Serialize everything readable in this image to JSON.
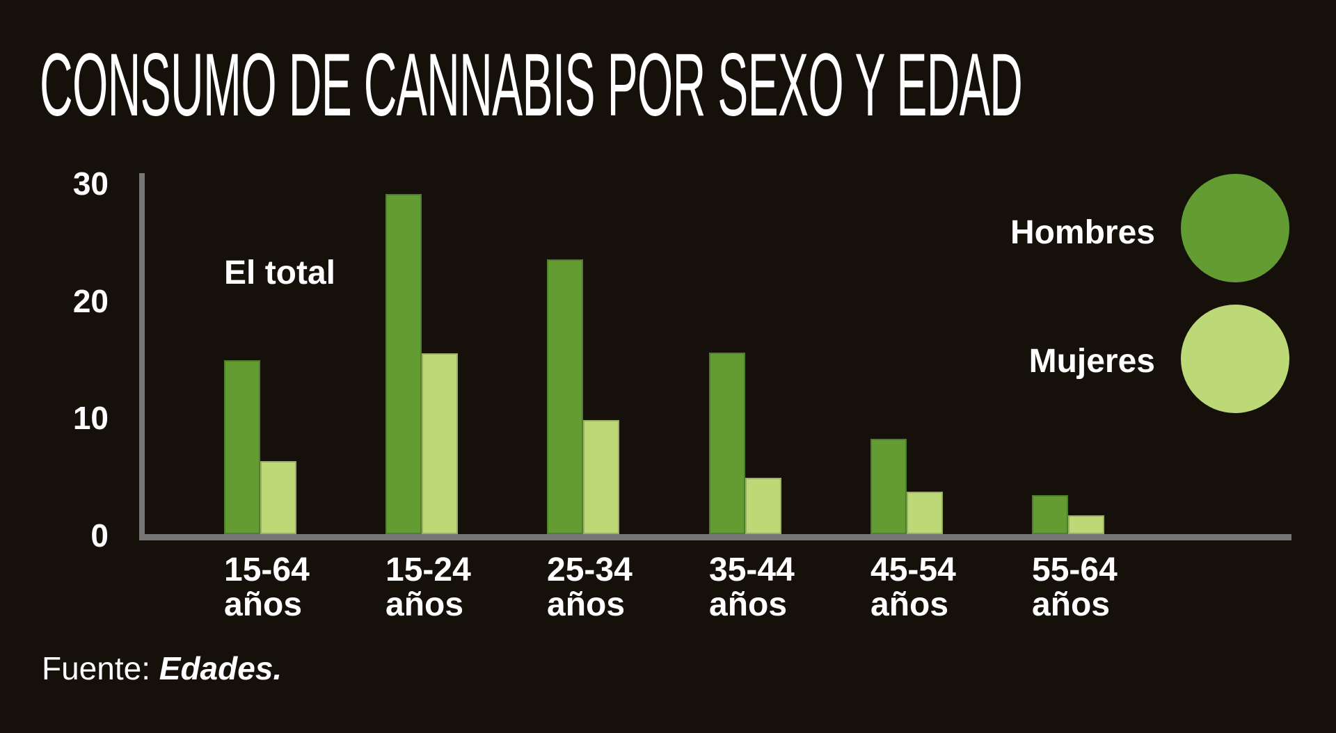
{
  "title": "CONSUMO DE CANNABIS POR SEXO Y EDAD",
  "annotation": "El total",
  "legend": {
    "items": [
      {
        "label": "Hombres",
        "color": "#649c34"
      },
      {
        "label": "Mujeres",
        "color": "#bdd877"
      }
    ]
  },
  "source": {
    "prefix": "Fuente: ",
    "name": "Edades."
  },
  "colors": {
    "background": "#15100a",
    "axis": "#777777",
    "text": "#ffffff",
    "hombres": "#649c34",
    "mujeres": "#bdd877"
  },
  "chart_data": {
    "type": "bar",
    "title": "CONSUMO DE CANNABIS POR SEXO Y EDAD",
    "categories": [
      "15-64 años",
      "15-24 años",
      "25-34 años",
      "35-44 años",
      "45-54 años",
      "55-64 años"
    ],
    "series": [
      {
        "name": "Hombres",
        "color": "#649c34",
        "values": [
          14.8,
          29.0,
          23.4,
          15.5,
          8.1,
          3.3
        ]
      },
      {
        "name": "Mujeres",
        "color": "#bdd877",
        "values": [
          6.2,
          15.4,
          9.7,
          4.8,
          3.6,
          1.6
        ]
      }
    ],
    "xlabel": "",
    "ylabel": "",
    "ylim": [
      0,
      30
    ],
    "yticks": [
      0,
      10,
      20,
      30
    ],
    "grid": false,
    "legend_position": "right",
    "annotations": [
      "El total"
    ],
    "source_note": "Fuente: Edades."
  }
}
